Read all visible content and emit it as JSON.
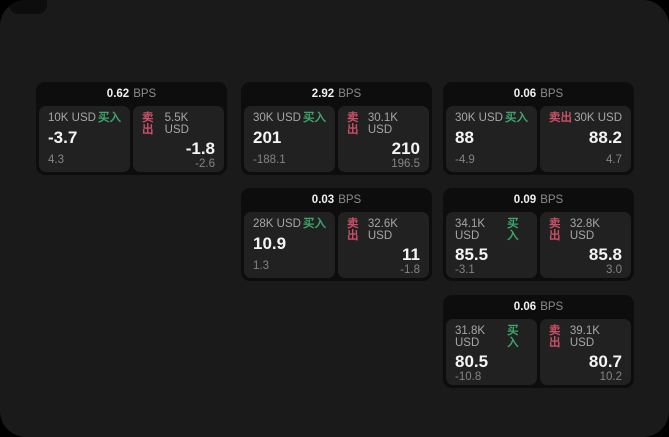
{
  "labels": {
    "bps": "BPS",
    "buy": "买入",
    "sell": "卖出"
  },
  "colors": {
    "outer_background": "#000000",
    "window_background": "#1a1a1a",
    "card_background": "#0d0d0d",
    "panel_background": "#212121",
    "buy_green": "#3fa46a",
    "sell_red": "#c94f66",
    "primary_text": "#f4f4f4",
    "muted_text": "#8b8b8b"
  },
  "cards": [
    {
      "bps": "0.62",
      "buy": {
        "amount": "10K USD",
        "main": "-3.7",
        "sub": "4.3"
      },
      "sell": {
        "amount": "5.5K USD",
        "main": "-1.8",
        "sub": "-2.6"
      }
    },
    {
      "bps": "2.92",
      "buy": {
        "amount": "30K USD",
        "main": "201",
        "sub": "-188.1"
      },
      "sell": {
        "amount": "30.1K USD",
        "main": "210",
        "sub": "196.5"
      }
    },
    {
      "bps": "0.06",
      "buy": {
        "amount": "30K USD",
        "main": "88",
        "sub": "-4.9"
      },
      "sell": {
        "amount": "30K USD",
        "main": "88.2",
        "sub": "4.7"
      }
    },
    {
      "bps": "0.03",
      "buy": {
        "amount": "28K USD",
        "main": "10.9",
        "sub": "1.3"
      },
      "sell": {
        "amount": "32.6K USD",
        "main": "11",
        "sub": "-1.8"
      }
    },
    {
      "bps": "0.09",
      "buy": {
        "amount": "34.1K USD",
        "main": "85.5",
        "sub": "-3.1"
      },
      "sell": {
        "amount": "32.8K USD",
        "main": "85.8",
        "sub": "3.0"
      }
    },
    {
      "bps": "0.06",
      "buy": {
        "amount": "31.8K USD",
        "main": "80.5",
        "sub": "-10.8"
      },
      "sell": {
        "amount": "39.1K USD",
        "main": "80.7",
        "sub": "10.2"
      }
    }
  ]
}
